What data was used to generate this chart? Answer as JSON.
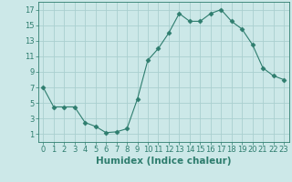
{
  "x": [
    0,
    1,
    2,
    3,
    4,
    5,
    6,
    7,
    8,
    9,
    10,
    11,
    12,
    13,
    14,
    15,
    16,
    17,
    18,
    19,
    20,
    21,
    22,
    23
  ],
  "y": [
    7,
    4.5,
    4.5,
    4.5,
    2.5,
    2,
    1.2,
    1.3,
    1.7,
    5.5,
    10.5,
    12,
    14,
    16.5,
    15.5,
    15.5,
    16.5,
    17,
    15.5,
    14.5,
    12.5,
    9.5,
    8.5,
    8
  ],
  "line_color": "#2e7d6e",
  "marker": "D",
  "marker_size": 2.5,
  "bg_color": "#cce8e8",
  "grid_color": "#aacfcf",
  "xlabel": "Humidex (Indice chaleur)",
  "ylabel": "",
  "xlim": [
    -0.5,
    23.5
  ],
  "ylim": [
    0,
    18
  ],
  "yticks": [
    1,
    3,
    5,
    7,
    9,
    11,
    13,
    15,
    17
  ],
  "xticks": [
    0,
    1,
    2,
    3,
    4,
    5,
    6,
    7,
    8,
    9,
    10,
    11,
    12,
    13,
    14,
    15,
    16,
    17,
    18,
    19,
    20,
    21,
    22,
    23
  ],
  "tick_fontsize": 6,
  "label_fontsize": 7.5
}
